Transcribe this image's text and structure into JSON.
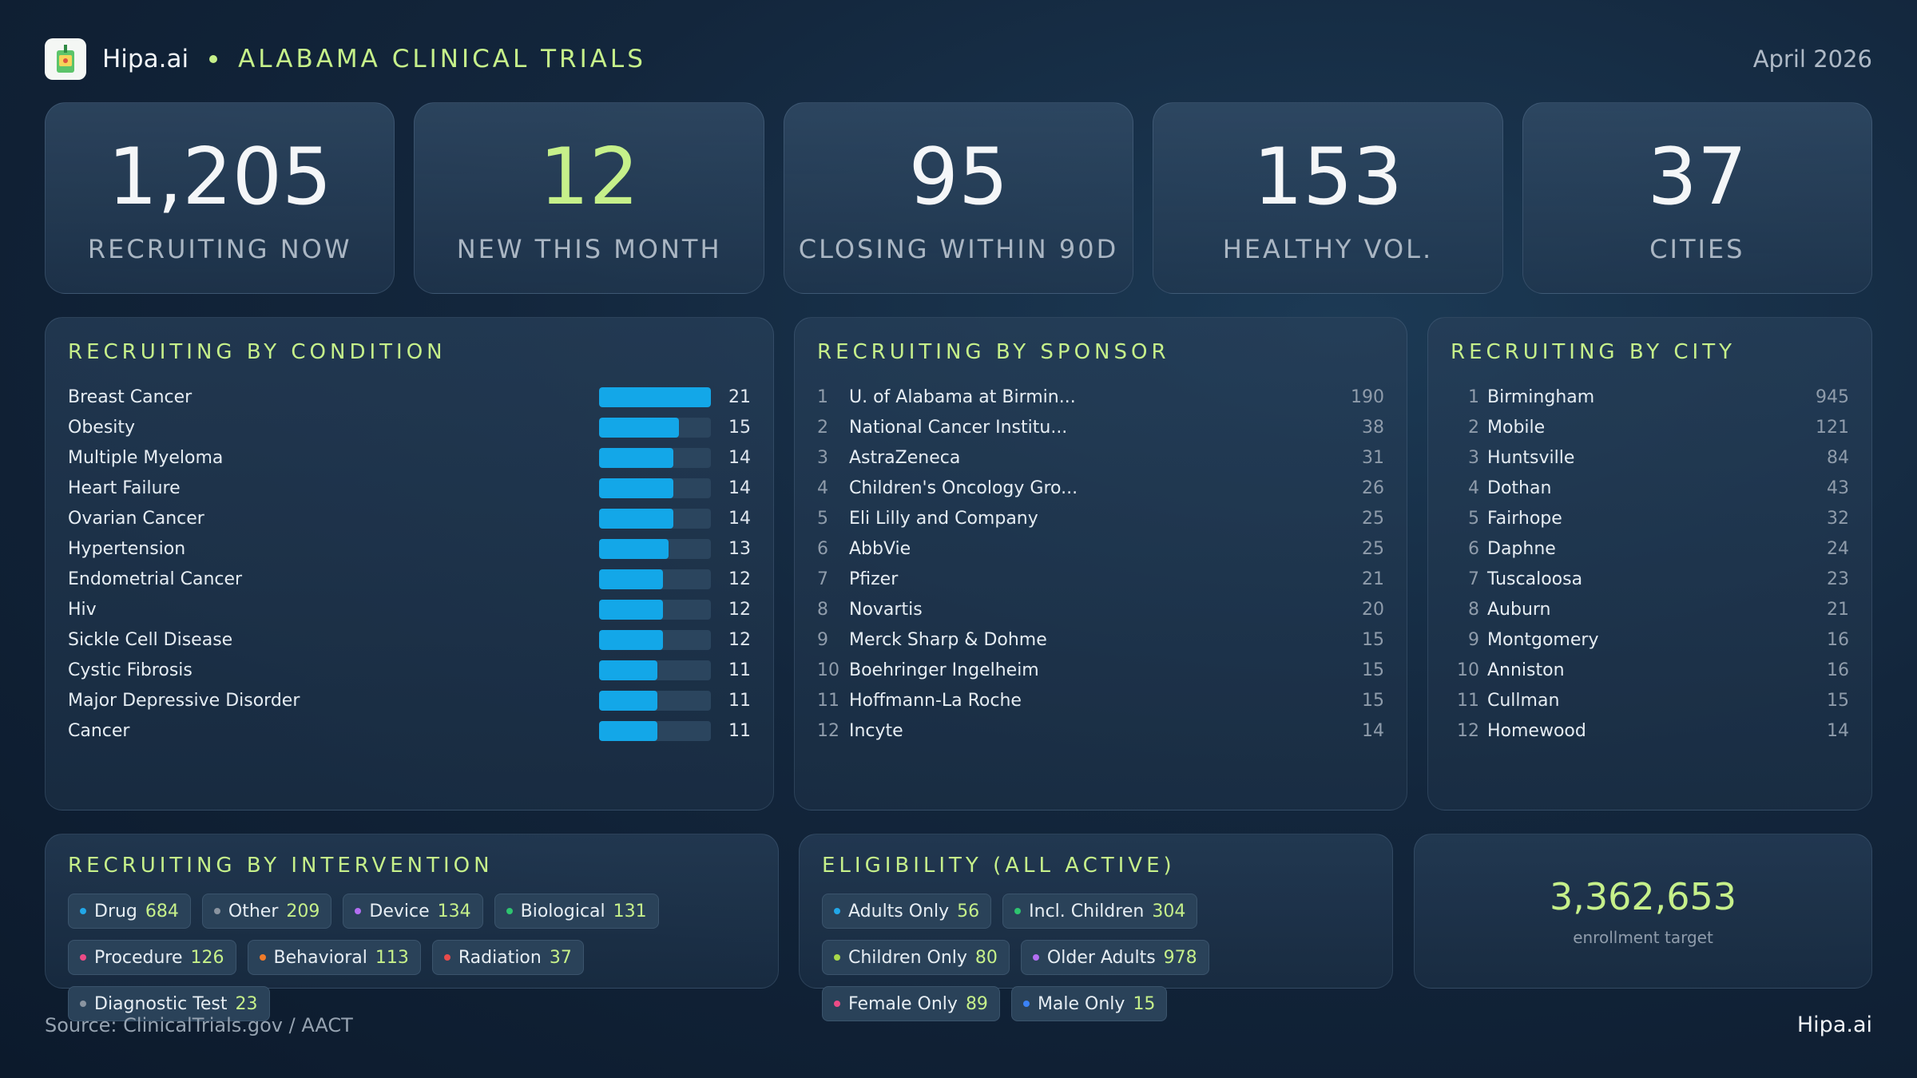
{
  "header": {
    "brand": "Hipa.ai",
    "title": "ALABAMA CLINICAL TRIALS",
    "date": "April 2026"
  },
  "kpis": [
    {
      "value": "1,205",
      "label": "RECRUITING NOW"
    },
    {
      "value": "12",
      "label": "NEW THIS MONTH"
    },
    {
      "value": "95",
      "label": "CLOSING WITHIN 90D"
    },
    {
      "value": "153",
      "label": "HEALTHY VOL."
    },
    {
      "value": "37",
      "label": "CITIES"
    }
  ],
  "condition": {
    "title": "RECRUITING BY CONDITION",
    "max": 21,
    "items": [
      {
        "name": "Breast Cancer",
        "value": 21
      },
      {
        "name": "Obesity",
        "value": 15
      },
      {
        "name": "Multiple Myeloma",
        "value": 14
      },
      {
        "name": "Heart Failure",
        "value": 14
      },
      {
        "name": "Ovarian Cancer",
        "value": 14
      },
      {
        "name": "Hypertension",
        "value": 13
      },
      {
        "name": "Endometrial Cancer",
        "value": 12
      },
      {
        "name": "Hiv",
        "value": 12
      },
      {
        "name": "Sickle Cell Disease",
        "value": 12
      },
      {
        "name": "Cystic Fibrosis",
        "value": 11
      },
      {
        "name": "Major Depressive Disorder",
        "value": 11
      },
      {
        "name": "Cancer",
        "value": 11
      }
    ]
  },
  "sponsor": {
    "title": "RECRUITING BY SPONSOR",
    "items": [
      {
        "rank": "1",
        "name": "U. of Alabama at Birmin...",
        "value": "190"
      },
      {
        "rank": "2",
        "name": "National Cancer Institu...",
        "value": "38"
      },
      {
        "rank": "3",
        "name": "AstraZeneca",
        "value": "31"
      },
      {
        "rank": "4",
        "name": "Children's Oncology Gro...",
        "value": "26"
      },
      {
        "rank": "5",
        "name": "Eli Lilly and Company",
        "value": "25"
      },
      {
        "rank": "6",
        "name": "AbbVie",
        "value": "25"
      },
      {
        "rank": "7",
        "name": "Pfizer",
        "value": "21"
      },
      {
        "rank": "8",
        "name": "Novartis",
        "value": "20"
      },
      {
        "rank": "9",
        "name": "Merck Sharp & Dohme",
        "value": "15"
      },
      {
        "rank": "10",
        "name": "Boehringer Ingelheim",
        "value": "15"
      },
      {
        "rank": "11",
        "name": "Hoffmann-La Roche",
        "value": "15"
      },
      {
        "rank": "12",
        "name": "Incyte",
        "value": "14"
      }
    ]
  },
  "city": {
    "title": "RECRUITING BY CITY",
    "items": [
      {
        "rank": "1",
        "name": "Birmingham",
        "value": "945"
      },
      {
        "rank": "2",
        "name": "Mobile",
        "value": "121"
      },
      {
        "rank": "3",
        "name": "Huntsville",
        "value": "84"
      },
      {
        "rank": "4",
        "name": "Dothan",
        "value": "43"
      },
      {
        "rank": "5",
        "name": "Fairhope",
        "value": "32"
      },
      {
        "rank": "6",
        "name": "Daphne",
        "value": "24"
      },
      {
        "rank": "7",
        "name": "Tuscaloosa",
        "value": "23"
      },
      {
        "rank": "8",
        "name": "Auburn",
        "value": "21"
      },
      {
        "rank": "9",
        "name": "Montgomery",
        "value": "16"
      },
      {
        "rank": "10",
        "name": "Anniston",
        "value": "16"
      },
      {
        "rank": "11",
        "name": "Cullman",
        "value": "15"
      },
      {
        "rank": "12",
        "name": "Homewood",
        "value": "14"
      }
    ]
  },
  "intervention": {
    "title": "RECRUITING BY INTERVENTION",
    "chips": [
      {
        "label": "Drug",
        "value": "684",
        "color": "#22a7e8"
      },
      {
        "label": "Other",
        "value": "209",
        "color": "#8a94a0"
      },
      {
        "label": "Device",
        "value": "134",
        "color": "#b36ef2"
      },
      {
        "label": "Biological",
        "value": "131",
        "color": "#2ec46f"
      },
      {
        "label": "Procedure",
        "value": "126",
        "color": "#ec4b86"
      },
      {
        "label": "Behavioral",
        "value": "113",
        "color": "#f07b2a"
      },
      {
        "label": "Radiation",
        "value": "37",
        "color": "#e84b4b"
      },
      {
        "label": "Diagnostic Test",
        "value": "23",
        "color": "#8a94a0"
      }
    ]
  },
  "eligibility": {
    "title": "ELIGIBILITY (ALL ACTIVE)",
    "chips": [
      {
        "label": "Adults Only",
        "value": "56",
        "color": "#22a7e8"
      },
      {
        "label": "Incl. Children",
        "value": "304",
        "color": "#2ec46f"
      },
      {
        "label": "Children Only",
        "value": "80",
        "color": "#a8d84a"
      },
      {
        "label": "Older Adults",
        "value": "978",
        "color": "#b36ef2"
      },
      {
        "label": "Female Only",
        "value": "89",
        "color": "#ec4b86"
      },
      {
        "label": "Male Only",
        "value": "15",
        "color": "#3b82f6"
      }
    ]
  },
  "enrollment": {
    "value": "3,362,653",
    "label": "enrollment target"
  },
  "footer": {
    "source": "Source: ClinicalTrials.gov / AACT",
    "brand": "Hipa.ai"
  }
}
